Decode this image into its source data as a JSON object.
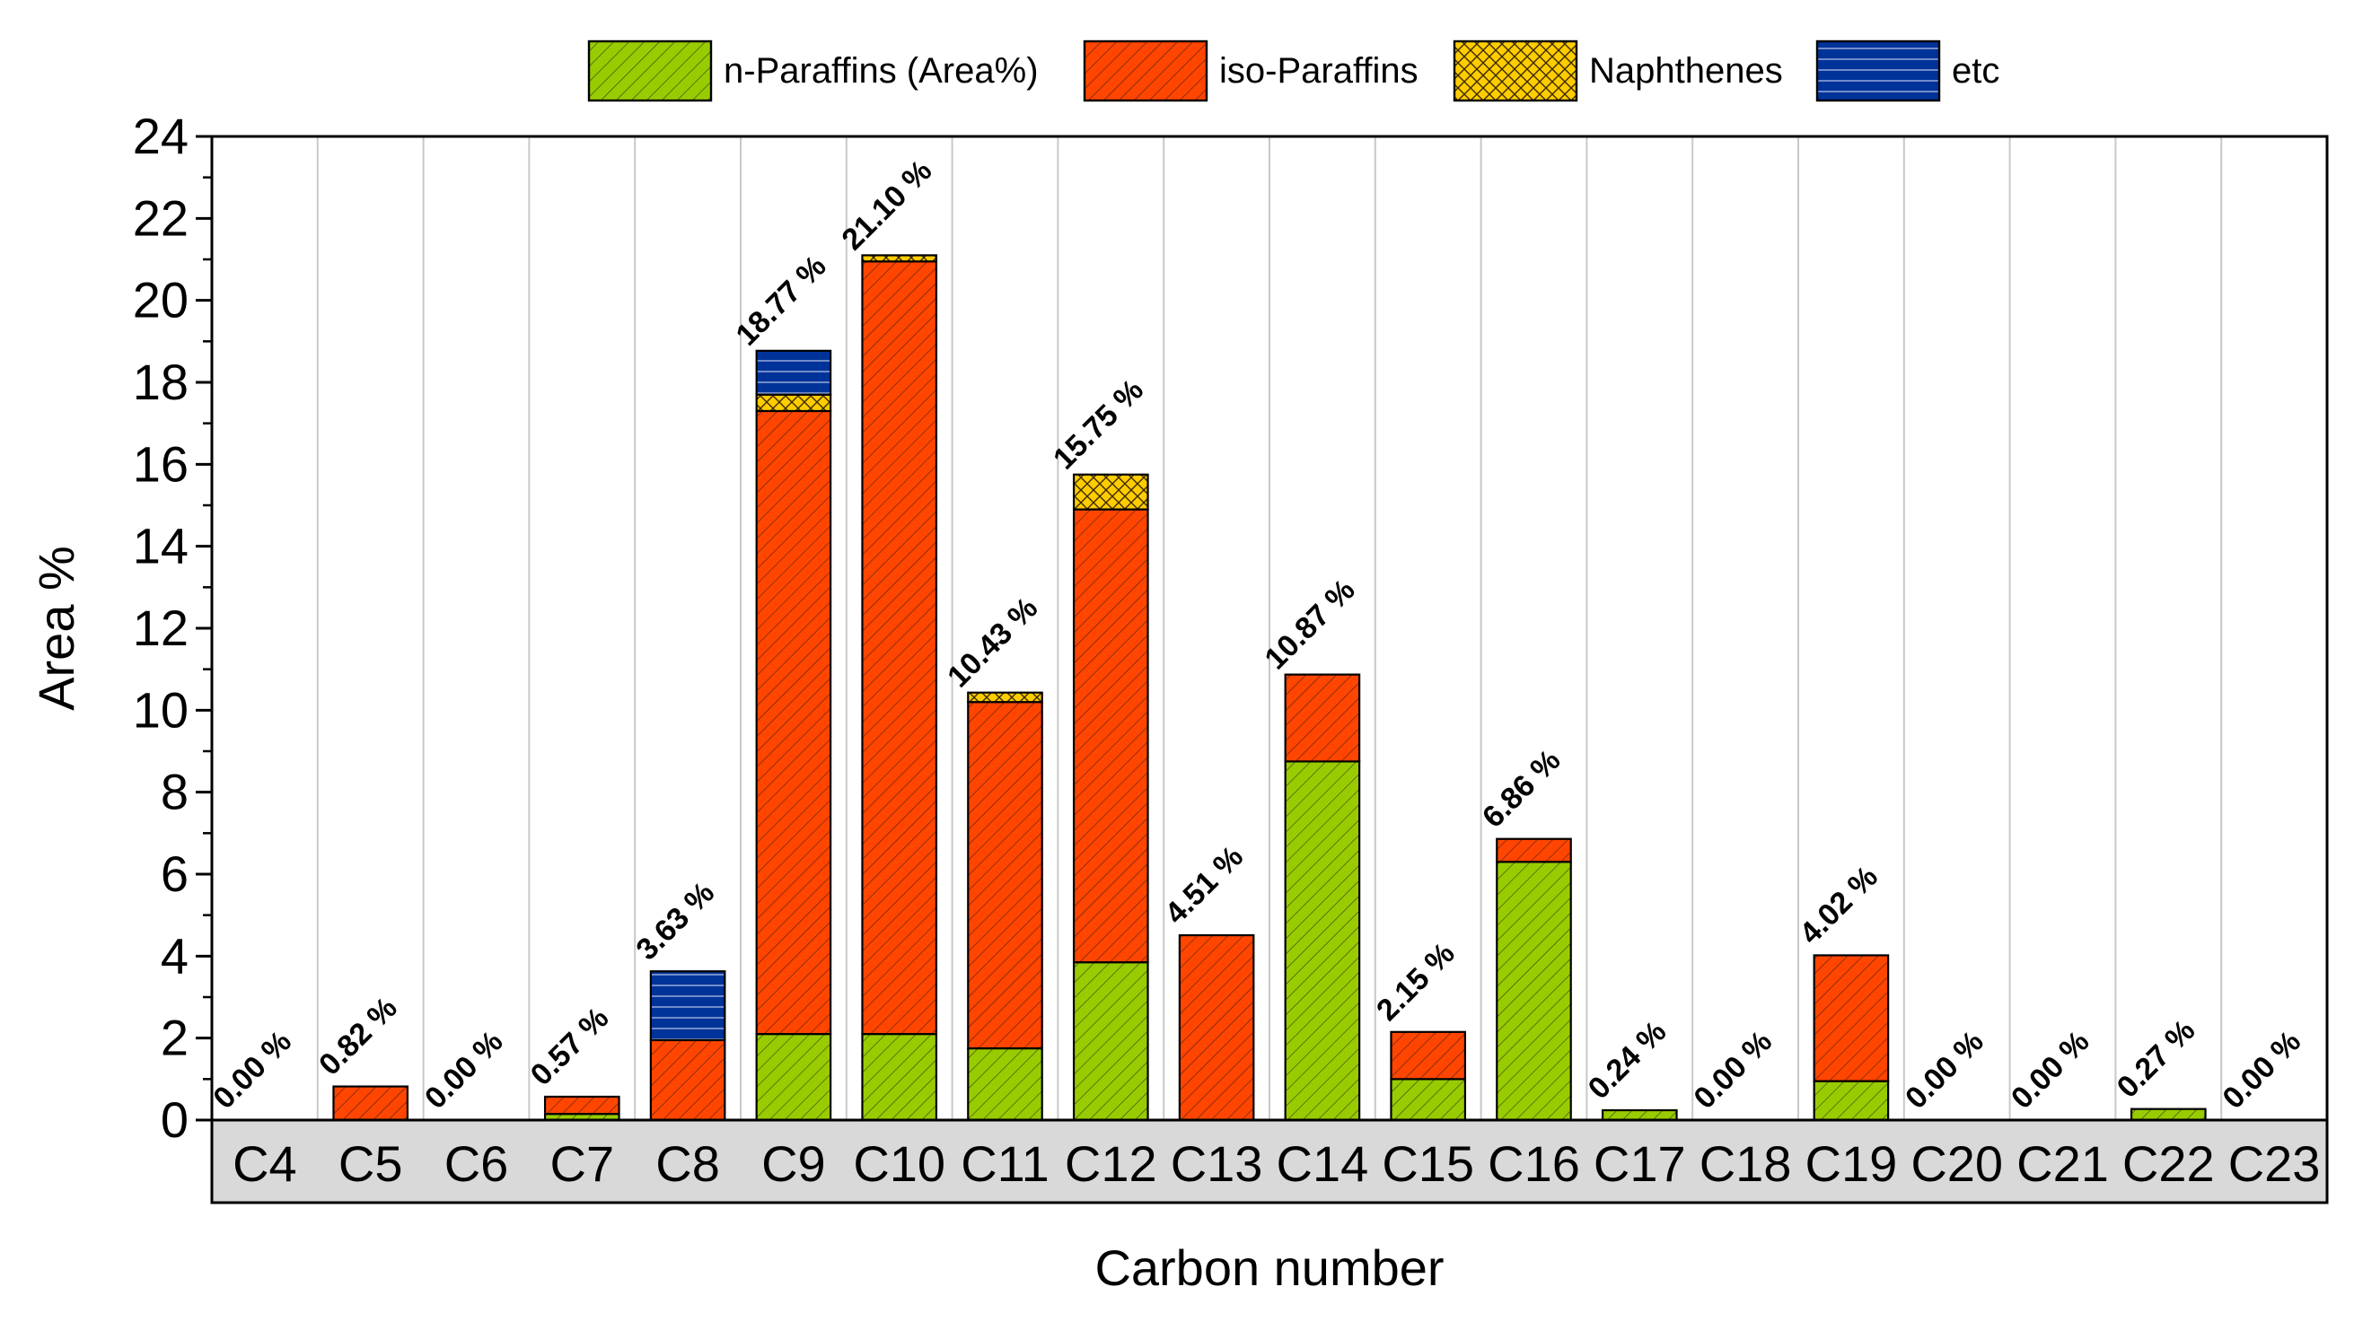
{
  "chart_data": {
    "type": "bar",
    "stacked": true,
    "xlabel": "Carbon number",
    "ylabel": "Area %",
    "ylim": [
      0,
      24
    ],
    "yticks": [
      "0",
      "2",
      "4",
      "6",
      "8",
      "10",
      "12",
      "14",
      "16",
      "18",
      "20",
      "22",
      "24"
    ],
    "grid": "vertical separators between categories",
    "legend_position": "top",
    "categories": [
      "C4",
      "C5",
      "C6",
      "C7",
      "C8",
      "C9",
      "C10",
      "C11",
      "C12",
      "C13",
      "C14",
      "C15",
      "C16",
      "C17",
      "C18",
      "C19",
      "C20",
      "C21",
      "C22",
      "C23"
    ],
    "series": [
      {
        "name": "n-Paraffins (Area%)",
        "color": "#99cc00",
        "pattern": "diagonal hatch",
        "values": [
          0,
          0,
          0,
          0.15,
          0,
          2.1,
          2.1,
          1.75,
          3.85,
          0,
          8.75,
          1,
          6.3,
          0.24,
          0,
          0.95,
          0,
          0,
          0.27,
          0
        ]
      },
      {
        "name": "iso-Paraffins",
        "color": "#ff4500",
        "pattern": "diagonal hatch",
        "values": [
          0,
          0.82,
          0,
          0.42,
          1.95,
          15.2,
          18.85,
          8.45,
          11.05,
          4.51,
          2.12,
          1.15,
          0.56,
          0,
          0,
          3.07,
          0,
          0,
          0,
          0
        ]
      },
      {
        "name": "Naphthenes",
        "color": "#ffcc00",
        "pattern": "crosshatch",
        "values": [
          0,
          0,
          0,
          0,
          0,
          0.4,
          0.15,
          0.23,
          0.85,
          0,
          0,
          0,
          0,
          0,
          0,
          0,
          0,
          0,
          0,
          0
        ]
      },
      {
        "name": "etc",
        "color": "#003399",
        "pattern": "horizontal lines",
        "values": [
          0,
          0,
          0,
          0,
          1.68,
          1.07,
          0,
          0,
          0,
          0,
          0,
          0,
          0,
          0,
          0,
          0,
          0,
          0,
          0,
          0
        ]
      }
    ],
    "totals": [
      0.0,
      0.82,
      0.0,
      0.57,
      3.63,
      18.77,
      21.1,
      10.43,
      15.75,
      4.51,
      10.87,
      2.15,
      6.86,
      0.24,
      0.0,
      4.02,
      0.0,
      0.0,
      0.27,
      0.0
    ],
    "total_labels": [
      "0.00 %",
      "0.82 %",
      "0.00 %",
      "0.57 %",
      "3.63 %",
      "18.77 %",
      "21.10 %",
      "10.43 %",
      "15.75 %",
      "4.51 %",
      "10.87 %",
      "2.15 %",
      "6.86 %",
      "0.24 %",
      "0.00 %",
      "4.02 %",
      "0.00 %",
      "0.00 %",
      "0.27 %",
      "0.00 %"
    ]
  }
}
